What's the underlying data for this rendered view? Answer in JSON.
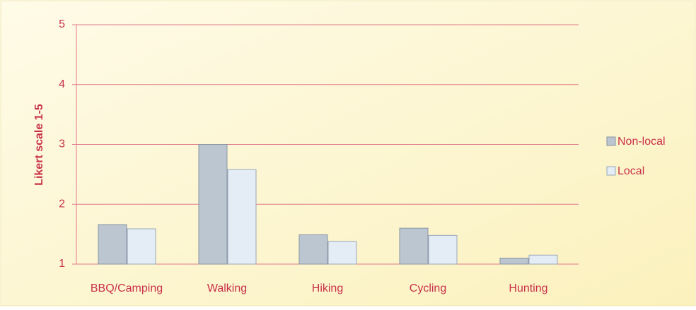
{
  "chart_data": {
    "type": "bar",
    "y_label": "Likert scale 1-5",
    "categories": [
      "BBQ/Camping",
      "Walking",
      "Hiking",
      "Cycling",
      "Hunting"
    ],
    "series": [
      {
        "name": "Non-local",
        "color": "#bcc6d1",
        "values": [
          1.66,
          3.0,
          1.49,
          1.6,
          1.1
        ]
      },
      {
        "name": "Local",
        "color": "#e4ecf6",
        "values": [
          1.59,
          2.58,
          1.38,
          1.48,
          1.15
        ]
      }
    ],
    "ylim": [
      1,
      5
    ],
    "yticks": [
      1,
      2,
      3,
      4,
      5
    ],
    "grid": true,
    "legend": "right"
  }
}
